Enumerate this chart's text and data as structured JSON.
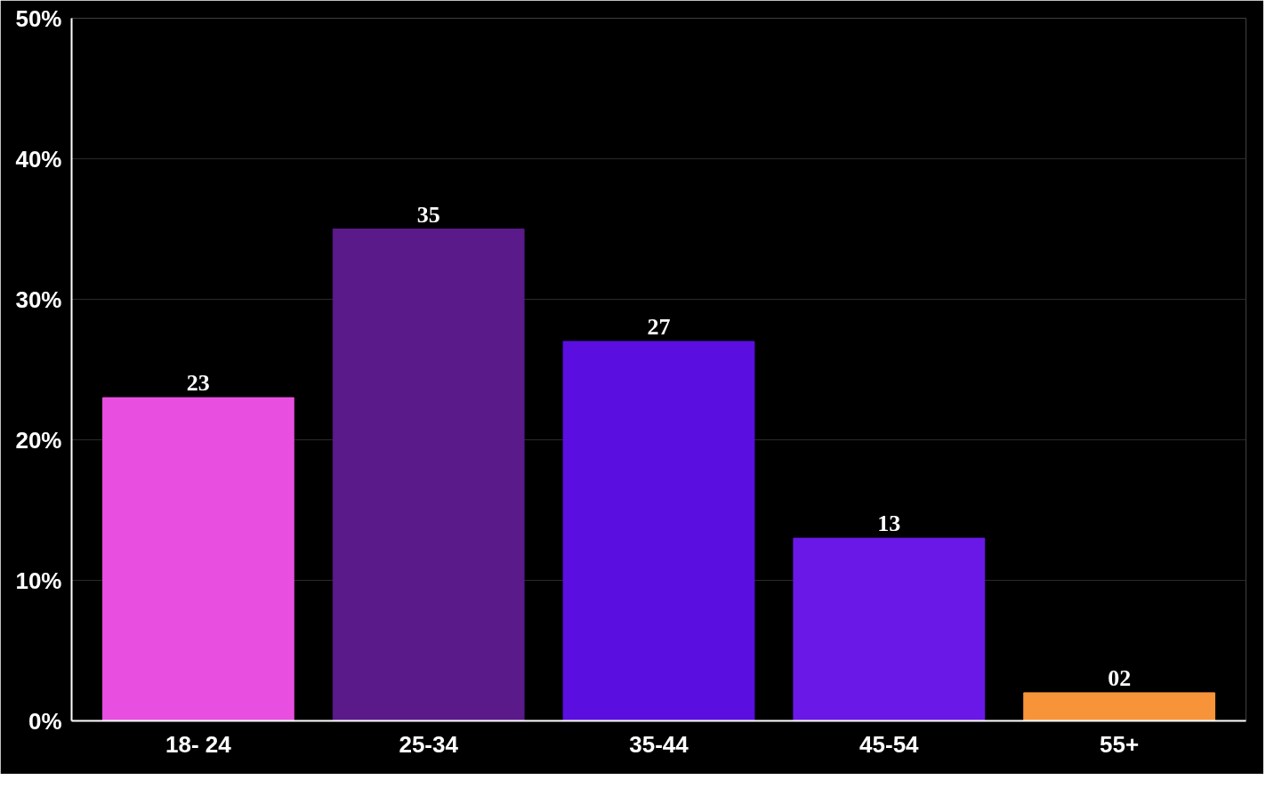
{
  "chart_data": {
    "type": "bar",
    "categories": [
      "18- 24",
      "25-34",
      "35-44",
      "45-54",
      "55+"
    ],
    "values": [
      23,
      35,
      27,
      13,
      2
    ],
    "value_labels": [
      "23",
      "35",
      "27",
      "13",
      "02"
    ],
    "colors": [
      "#e84fe0",
      "#5a1a8a",
      "#5a0fe0",
      "#6a18e8",
      "#f7943a"
    ],
    "ylim": [
      0,
      50
    ],
    "yticks": [
      {
        "value": 0,
        "label": "0%"
      },
      {
        "value": 10,
        "label": "10%"
      },
      {
        "value": 20,
        "label": "20%"
      },
      {
        "value": 30,
        "label": "30%"
      },
      {
        "value": 40,
        "label": "40%"
      },
      {
        "value": 50,
        "label": "50%"
      }
    ],
    "grid": "y"
  }
}
